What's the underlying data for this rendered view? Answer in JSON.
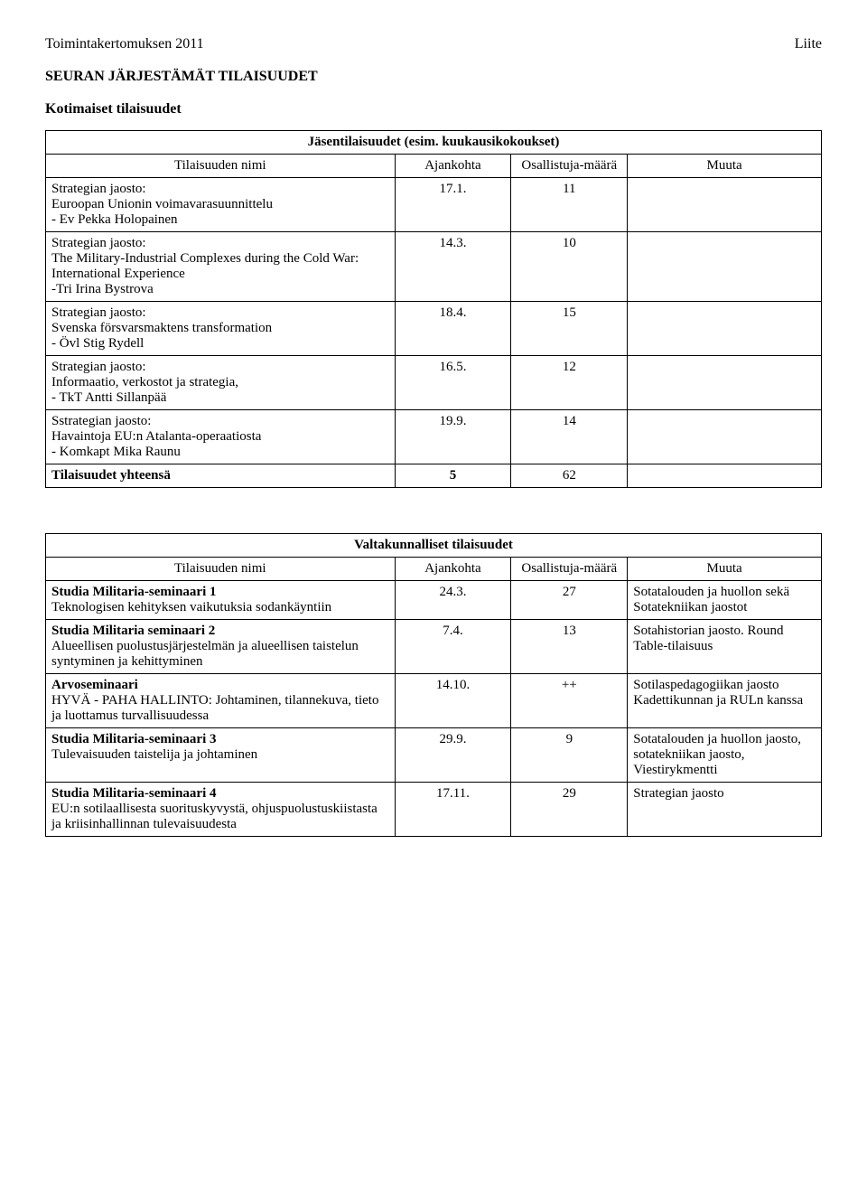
{
  "header": {
    "left": "Toimintakertomuksen 2011",
    "right": "Liite"
  },
  "section_title": "SEURAN JÄRJESTÄMÄT TILAISUUDET",
  "subsection_title": "Kotimaiset tilaisuudet",
  "table1": {
    "caption": "Jäsentilaisuudet (esim. kuukausikokoukset)",
    "columns": {
      "name": "Tilaisuuden nimi",
      "date": "Ajankohta",
      "count": "Osallistuja-määrä",
      "note": "Muuta"
    },
    "rows": [
      {
        "name_lines": [
          "Strategian jaosto:",
          "Euroopan Unionin voimavarasuunnittelu",
          " - Ev Pekka Holopainen"
        ],
        "date": "17.1.",
        "count": "11",
        "note": ""
      },
      {
        "name_lines": [
          "Strategian jaosto:",
          "The Military-Industrial Complexes during the Cold War: International Experience",
          " -Tri Irina Bystrova"
        ],
        "date": "14.3.",
        "count": "10",
        "note": ""
      },
      {
        "name_lines": [
          "Strategian jaosto:",
          "Svenska försvarsmaktens transformation",
          "- Övl Stig Rydell"
        ],
        "date": "18.4.",
        "count": "15",
        "note": ""
      },
      {
        "name_lines": [
          "Strategian jaosto:",
          "Informaatio, verkostot ja strategia,",
          " - TkT Antti Sillanpää"
        ],
        "date": "16.5.",
        "count": "12",
        "note": ""
      },
      {
        "name_lines": [
          "Sstrategian jaosto:",
          "Havaintoja EU:n Atalanta-operaatiosta",
          "- Komkapt Mika Raunu"
        ],
        "date": "19.9.",
        "count": "14",
        "note": ""
      }
    ],
    "total_row": {
      "label": "Tilaisuudet yhteensä",
      "date": "5",
      "count": "62",
      "note": ""
    }
  },
  "table2": {
    "caption": "Valtakunnalliset tilaisuudet",
    "columns": {
      "name": "Tilaisuuden nimi",
      "date": "Ajankohta",
      "count": "Osallistuja-määrä",
      "note": "Muuta"
    },
    "rows": [
      {
        "name_bold": "Studia Militaria-seminaari 1",
        "name_rest": "Teknologisen kehityksen vaikutuksia sodankäyntiin",
        "date": "24.3.",
        "count": "27",
        "note": "Sotatalouden ja huollon sekä Sotatekniikan jaostot"
      },
      {
        "name_bold": "Studia Militaria seminaari 2",
        "name_rest": "Alueellisen puolustusjärjestelmän ja alueellisen taistelun syntyminen ja kehittyminen",
        "date": "7.4.",
        "count": "13",
        "note": "Sotahistorian jaosto. Round Table-tilaisuus"
      },
      {
        "name_bold": "Arvoseminaari",
        "name_rest": "HYVÄ - PAHA HALLINTO: Johtaminen, tilannekuva, tieto ja luottamus turvallisuudessa",
        "date": "14.10.",
        "count": "++",
        "note": "Sotilaspedagogiikan jaosto Kadettikunnan ja RULn kanssa"
      },
      {
        "name_bold": "Studia Militaria-seminaari 3",
        "name_rest": " Tulevaisuuden taistelija ja johtaminen",
        "date": "29.9.",
        "count": "9",
        "note": "Sotatalouden ja huollon jaosto, sotatekniikan jaosto, Viestirykmentti"
      },
      {
        "name_bold": "Studia Militaria-seminaari 4",
        "name_rest": "EU:n sotilaallisesta suorituskyvystä, ohjuspuolustuskiistasta ja kriisinhallinnan tulevaisuudesta",
        "date": "17.11.",
        "count": "29",
        "note": "Strategian jaosto"
      }
    ]
  }
}
